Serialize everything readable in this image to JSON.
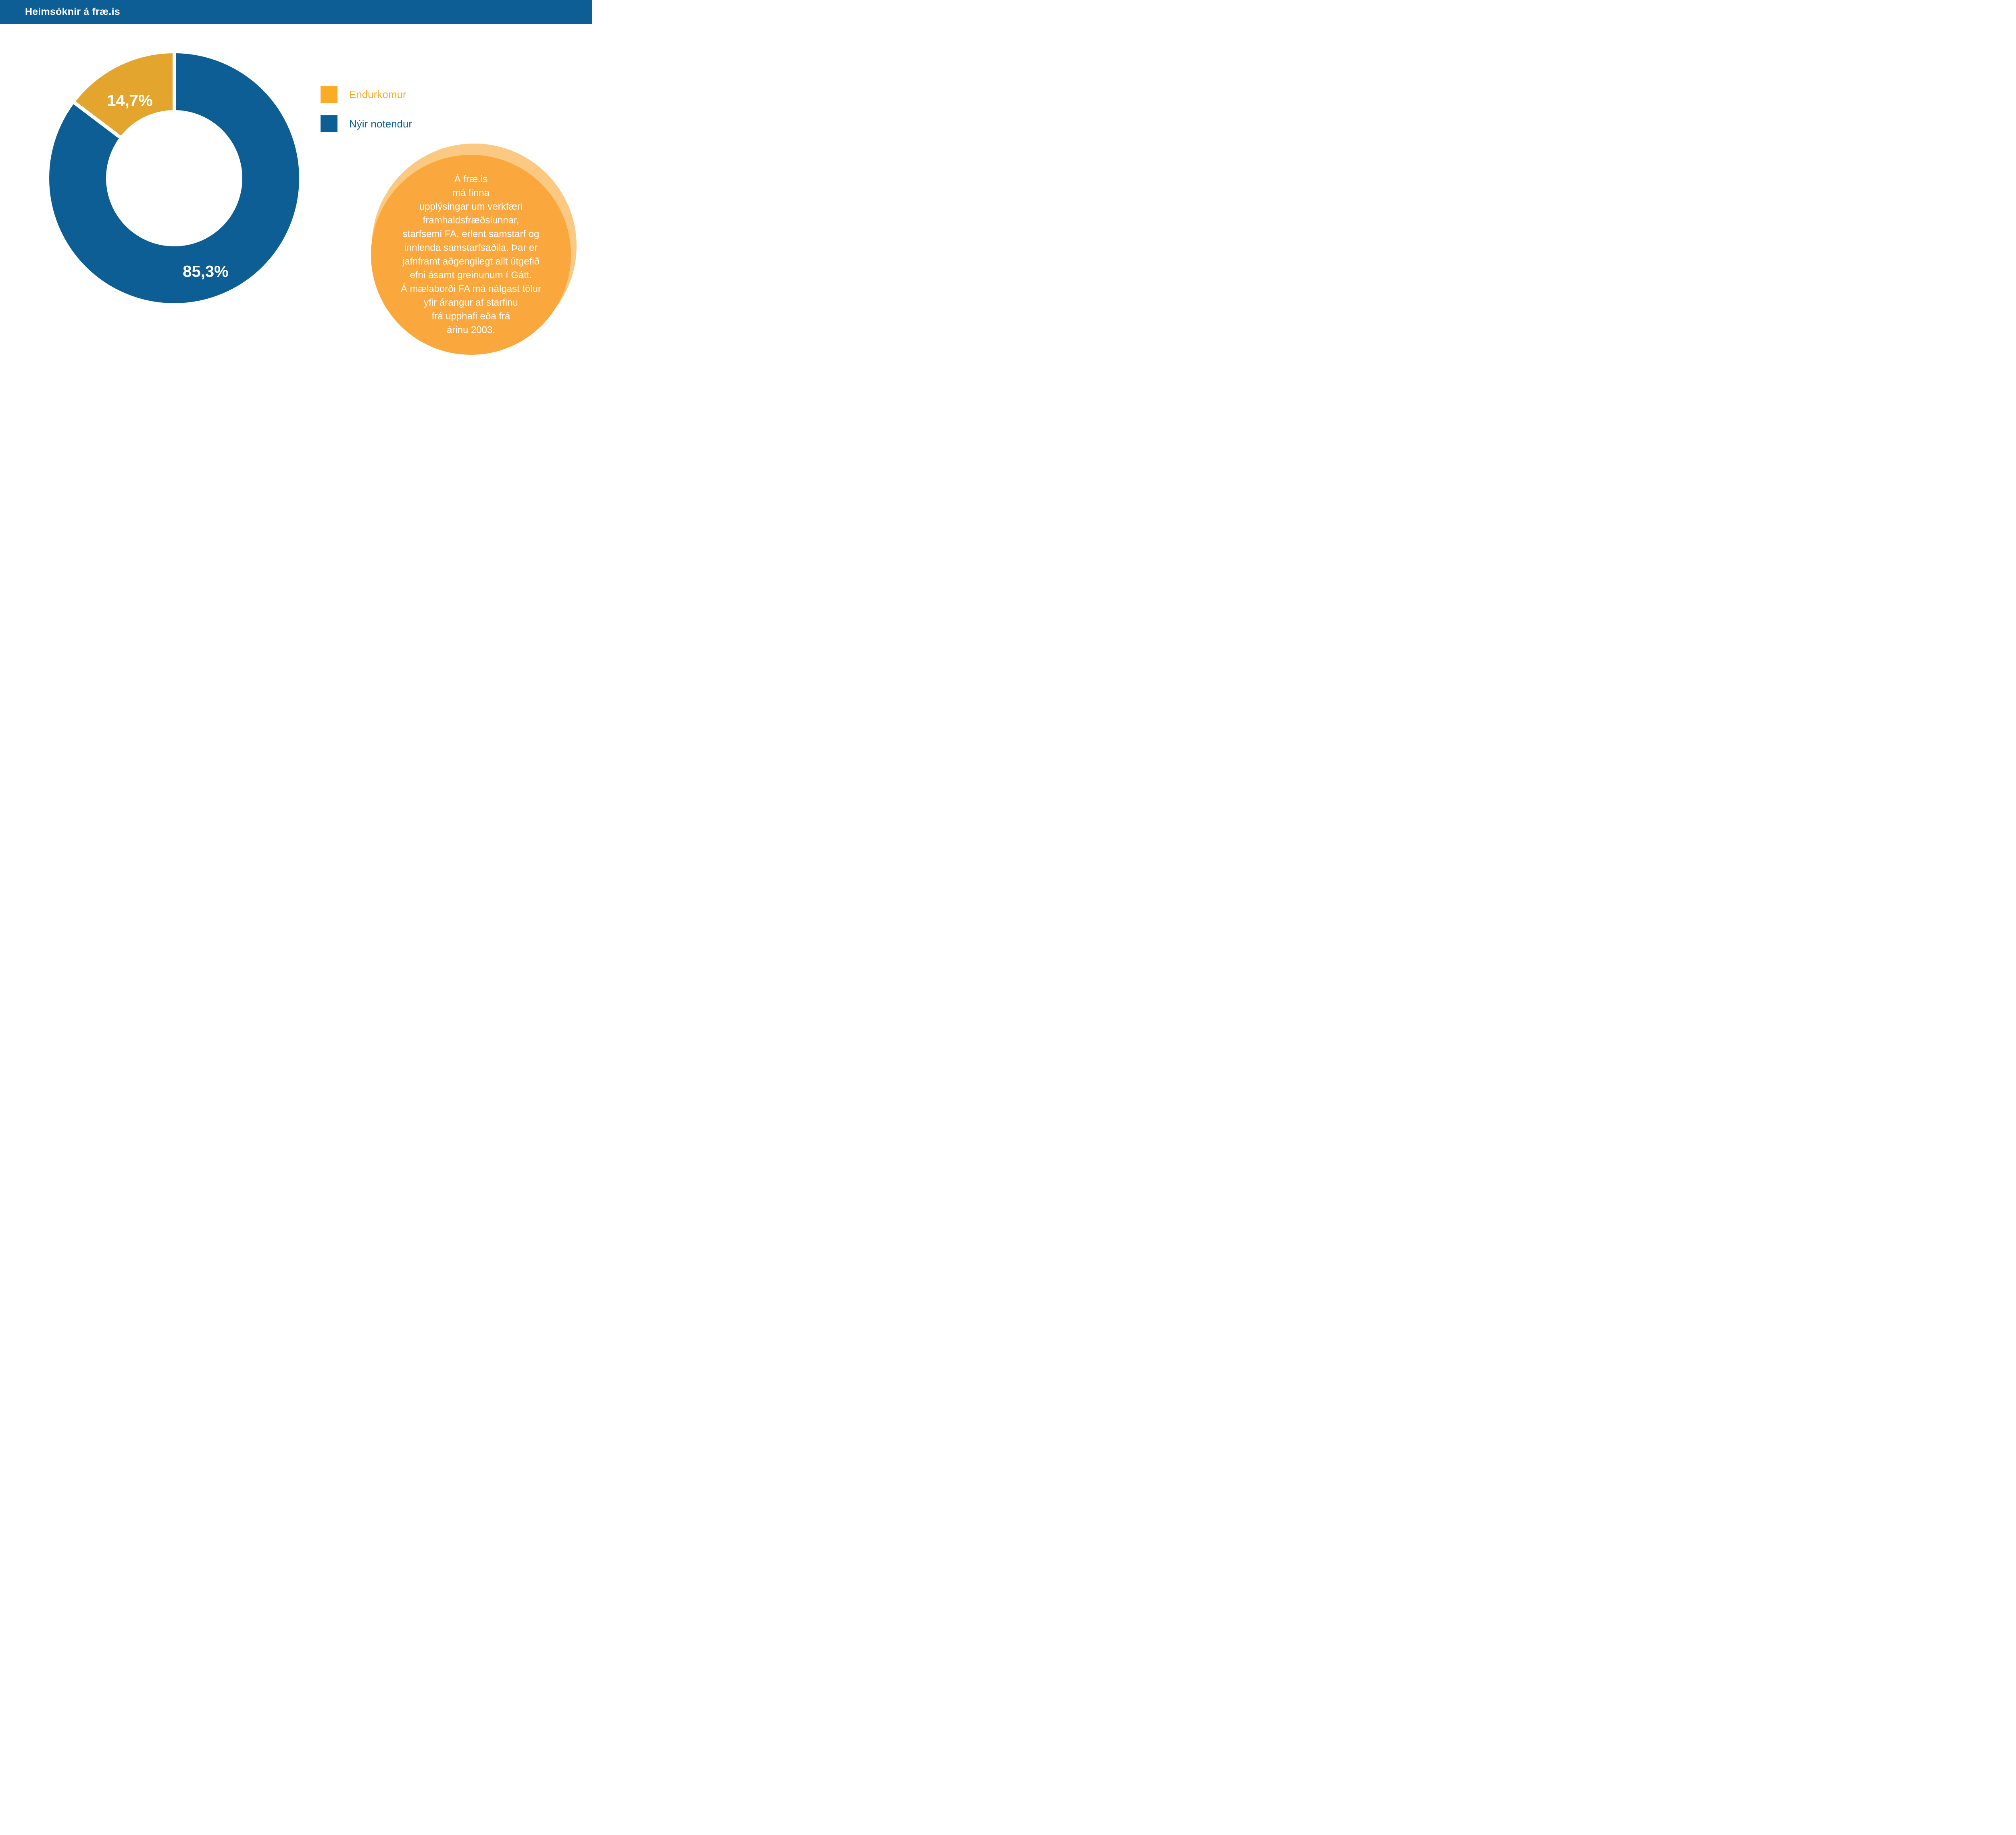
{
  "header": {
    "title": "Heimsóknir á fræ.is"
  },
  "colors": {
    "blue": "#0D5E94",
    "slice_orange": "#E3A52E",
    "legend_orange": "#FCAB26",
    "ball_orange": "#FAA83D",
    "ball_rim": "#FCC983",
    "label_text": "#FFFFFF"
  },
  "chart_data": {
    "type": "pie",
    "subtype": "donut",
    "title": "Heimsóknir á fræ.is",
    "categories": [
      "Endurkomur",
      "Nýir notendur"
    ],
    "values": [
      14.7,
      85.3
    ],
    "display_labels": [
      "14,7%",
      "85,3%"
    ],
    "colors": [
      "#E3A52E",
      "#0D5E94"
    ],
    "start_angle_deg": 0,
    "direction": "clockwise",
    "note": "Blue slice (Nýir notendur, 85.3%) starts at 12 o'clock going clockwise; orange slice (Endurkomur, 14.7%) fills the remainder back to 12 o'clock; thin white separator lines between slices",
    "inner_radius_ratio": 0.545,
    "legend_position": "right"
  },
  "legend": {
    "items": [
      {
        "label": "Endurkomur",
        "color": "#FCAB26",
        "text_color": "#FCAB26"
      },
      {
        "label": "Nýir notendur",
        "color": "#0D5E94",
        "text_color": "#0D5E94"
      }
    ]
  },
  "callout": {
    "bg": "#FAA83D",
    "rim": "#FCC983",
    "text_color": "#FFFFFF",
    "lines": [
      "Á fræ.is",
      "má finna",
      "upplýsingar um verkfæri",
      "framhaldsfræðslunnar,",
      "starfsemi FA, erlent samstarf og",
      "innlenda samstarfsaðila. Þar er",
      "jafnframt aðgengilegt allt útgefið",
      "efni ásamt greinunum í Gátt.",
      "Á mælaborði FA má nálgast tölur",
      "yfir árangur af starfinu",
      "frá upphafi eða frá",
      "árinu 2003."
    ]
  }
}
